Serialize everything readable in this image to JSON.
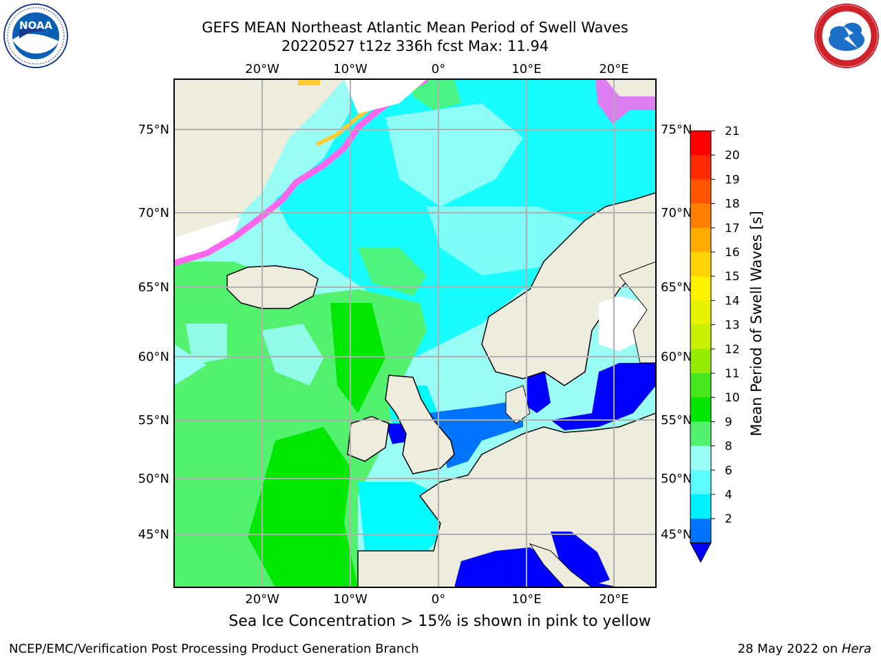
{
  "header": {
    "title": "GEFS MEAN Northeast Atlantic Mean Period of Swell Waves",
    "subtitle": "20220527 t12z 336h fcst   Max: 11.94"
  },
  "logos": {
    "left": {
      "icon": "noaa-logo-icon",
      "text": "NOAA",
      "ring_text": "NATIONAL OCEANIC AND ATMOSPHERIC ADMINISTRATION · U.S. DEPARTMENT OF COMMERCE"
    },
    "right": {
      "icon": "nws-logo-icon",
      "ring_text": "NATIONAL WEATHER SERVICE"
    }
  },
  "map": {
    "region": "Northeast Atlantic",
    "lon_labels": [
      "20°W",
      "10°W",
      "0°",
      "10°E",
      "20°E"
    ],
    "lat_labels": [
      "75°N",
      "70°N",
      "65°N",
      "60°N",
      "55°N",
      "50°N",
      "45°N"
    ],
    "colors": {
      "land": "#eeecdc",
      "ocean_6_8": "#00fbff",
      "ocean_8_9": "#99fdf6",
      "ocean_9_10": "#52f26f",
      "ocean_10_11": "#00e800",
      "ocean_2_4": "#0073ff",
      "ocean_lt2": "#0000ff",
      "ice_pink": "#ff66ee",
      "ice_yellow": "#ffcc33"
    }
  },
  "colorbar": {
    "label": "Mean Period of Swell Waves [s]",
    "ticks": [
      "21",
      "20",
      "19",
      "18",
      "17",
      "16",
      "15",
      "14",
      "13",
      "12",
      "11",
      "10",
      "9",
      "8",
      "6",
      "4",
      "2"
    ],
    "colors_top_to_bottom": [
      "#ff0000",
      "#ff2a00",
      "#ff5500",
      "#ff8000",
      "#ffaa00",
      "#ffd400",
      "#fff200",
      "#e6f200",
      "#c8f000",
      "#96ec00",
      "#46e61e",
      "#00e600",
      "#52f26f",
      "#99fdf6",
      "#5afcfc",
      "#00f0ff",
      "#0073ff"
    ],
    "under_color": "#0000ff"
  },
  "caption": "Sea Ice Concentration > 15% is shown in pink to yellow",
  "footer": {
    "left": "NCEP/EMC/Verification Post Processing Product Generation Branch",
    "right_date": "28 May 2022 on ",
    "right_machine": "Hera"
  }
}
